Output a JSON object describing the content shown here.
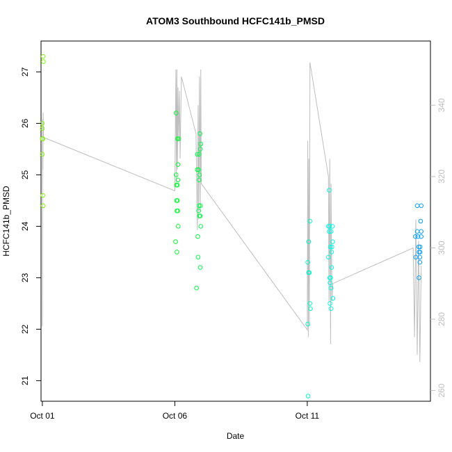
{
  "chart_data": {
    "type": "scatter",
    "title": "ATOM3 Southbound HCFC141b_PMSD",
    "xlabel": "Date",
    "ylabel": "HCFC141b_PMSD",
    "xlim": [
      -0.05,
      14.65
    ],
    "ylim": [
      20.6,
      27.6
    ],
    "y2lim": [
      257,
      358
    ],
    "x_tick_labels": [
      "Oct 01",
      "Oct 06",
      "Oct 11"
    ],
    "x_tick_days": [
      0,
      5,
      10
    ],
    "y_ticks": [
      21,
      22,
      23,
      24,
      25,
      26,
      27
    ],
    "y2_ticks": [
      260,
      280,
      300,
      320,
      340
    ],
    "grid": false,
    "points_color_note": "gradient from green (early) through cyan to blue (late)",
    "series": [
      {
        "values": [
          {
            "x": 0.03,
            "y": 27.3
          },
          {
            "x": 0.04,
            "y": 27.2
          },
          {
            "x": 0.0,
            "y": 26.0
          },
          {
            "x": 0.0,
            "y": 25.9
          },
          {
            "x": 0.0,
            "y": 25.7
          },
          {
            "x": 0.02,
            "y": 25.7
          },
          {
            "x": 0.0,
            "y": 25.4
          },
          {
            "x": 0.02,
            "y": 24.6
          },
          {
            "x": 0.03,
            "y": 24.4
          },
          {
            "x": 5.05,
            "y": 26.2
          },
          {
            "x": 5.1,
            "y": 25.7
          },
          {
            "x": 5.15,
            "y": 25.7
          },
          {
            "x": 5.12,
            "y": 25.2
          },
          {
            "x": 5.05,
            "y": 25.0
          },
          {
            "x": 5.12,
            "y": 24.9
          },
          {
            "x": 5.06,
            "y": 24.8
          },
          {
            "x": 5.1,
            "y": 24.8
          },
          {
            "x": 5.07,
            "y": 24.5
          },
          {
            "x": 5.1,
            "y": 24.5
          },
          {
            "x": 5.08,
            "y": 24.3
          },
          {
            "x": 5.11,
            "y": 24.3
          },
          {
            "x": 5.13,
            "y": 24.0
          },
          {
            "x": 5.03,
            "y": 23.7
          },
          {
            "x": 5.08,
            "y": 23.5
          },
          {
            "x": 5.95,
            "y": 25.8
          },
          {
            "x": 5.98,
            "y": 25.6
          },
          {
            "x": 5.96,
            "y": 25.5
          },
          {
            "x": 5.85,
            "y": 25.4
          },
          {
            "x": 5.92,
            "y": 25.4
          },
          {
            "x": 5.85,
            "y": 25.1
          },
          {
            "x": 5.9,
            "y": 25.1
          },
          {
            "x": 5.93,
            "y": 25.0
          },
          {
            "x": 5.92,
            "y": 24.9
          },
          {
            "x": 5.92,
            "y": 24.4
          },
          {
            "x": 5.97,
            "y": 24.4
          },
          {
            "x": 5.9,
            "y": 24.3
          },
          {
            "x": 5.93,
            "y": 24.2
          },
          {
            "x": 5.96,
            "y": 24.2
          },
          {
            "x": 5.98,
            "y": 24.0
          },
          {
            "x": 5.87,
            "y": 23.8
          },
          {
            "x": 5.88,
            "y": 23.4
          },
          {
            "x": 5.96,
            "y": 23.2
          },
          {
            "x": 5.82,
            "y": 22.8
          },
          {
            "x": 10.1,
            "y": 24.1
          },
          {
            "x": 10.05,
            "y": 23.7
          },
          {
            "x": 10.02,
            "y": 23.3
          },
          {
            "x": 10.05,
            "y": 23.1
          },
          {
            "x": 10.08,
            "y": 23.1
          },
          {
            "x": 10.1,
            "y": 22.5
          },
          {
            "x": 10.12,
            "y": 22.4
          },
          {
            "x": 10.02,
            "y": 22.1
          },
          {
            "x": 10.03,
            "y": 20.7
          },
          {
            "x": 10.83,
            "y": 24.7
          },
          {
            "x": 10.8,
            "y": 24.0
          },
          {
            "x": 10.84,
            "y": 24.0
          },
          {
            "x": 10.95,
            "y": 24.0
          },
          {
            "x": 10.83,
            "y": 23.9
          },
          {
            "x": 10.9,
            "y": 23.9
          },
          {
            "x": 10.96,
            "y": 23.7
          },
          {
            "x": 10.87,
            "y": 23.6
          },
          {
            "x": 10.93,
            "y": 23.6
          },
          {
            "x": 10.92,
            "y": 23.5
          },
          {
            "x": 10.8,
            "y": 23.4
          },
          {
            "x": 10.92,
            "y": 23.2
          },
          {
            "x": 10.85,
            "y": 23.0
          },
          {
            "x": 10.88,
            "y": 23.0
          },
          {
            "x": 10.86,
            "y": 22.9
          },
          {
            "x": 10.9,
            "y": 22.8
          },
          {
            "x": 10.97,
            "y": 22.6
          },
          {
            "x": 10.86,
            "y": 22.5
          },
          {
            "x": 10.9,
            "y": 22.4
          },
          {
            "x": 14.15,
            "y": 24.4
          },
          {
            "x": 14.3,
            "y": 24.4
          },
          {
            "x": 14.15,
            "y": 23.9
          },
          {
            "x": 14.3,
            "y": 23.9
          },
          {
            "x": 14.08,
            "y": 23.8
          },
          {
            "x": 14.18,
            "y": 23.8
          },
          {
            "x": 14.3,
            "y": 23.8
          },
          {
            "x": 14.21,
            "y": 23.6
          },
          {
            "x": 14.26,
            "y": 23.6
          },
          {
            "x": 14.26,
            "y": 23.5
          },
          {
            "x": 14.22,
            "y": 23.5
          },
          {
            "x": 14.28,
            "y": 24.1
          },
          {
            "x": 14.1,
            "y": 23.4
          },
          {
            "x": 14.25,
            "y": 23.4
          },
          {
            "x": 14.22,
            "y": 23.0
          },
          {
            "x": 14.25,
            "y": 23.3
          }
        ]
      },
      {
        "axis": "right",
        "values": [
          {
            "x": 0.0,
            "y": 278
          },
          {
            "x": 0.01,
            "y": 336
          },
          {
            "x": 0.02,
            "y": 322
          },
          {
            "x": 0.03,
            "y": 338
          },
          {
            "x": 0.04,
            "y": 331
          },
          {
            "x": 5.0,
            "y": 316
          },
          {
            "x": 5.04,
            "y": 350
          },
          {
            "x": 5.06,
            "y": 318
          },
          {
            "x": 5.08,
            "y": 350
          },
          {
            "x": 5.1,
            "y": 322
          },
          {
            "x": 5.12,
            "y": 345
          },
          {
            "x": 5.15,
            "y": 330
          },
          {
            "x": 5.18,
            "y": 344
          },
          {
            "x": 5.2,
            "y": 325
          },
          {
            "x": 5.25,
            "y": 348
          },
          {
            "x": 5.8,
            "y": 332
          },
          {
            "x": 5.85,
            "y": 305
          },
          {
            "x": 5.88,
            "y": 340
          },
          {
            "x": 5.9,
            "y": 308
          },
          {
            "x": 5.93,
            "y": 348
          },
          {
            "x": 5.96,
            "y": 310
          },
          {
            "x": 5.98,
            "y": 350
          },
          {
            "x": 6.0,
            "y": 318
          },
          {
            "x": 10.0,
            "y": 277
          },
          {
            "x": 10.02,
            "y": 330
          },
          {
            "x": 10.04,
            "y": 275
          },
          {
            "x": 10.06,
            "y": 325
          },
          {
            "x": 10.08,
            "y": 278
          },
          {
            "x": 10.1,
            "y": 352
          },
          {
            "x": 10.8,
            "y": 320
          },
          {
            "x": 10.82,
            "y": 285
          },
          {
            "x": 10.85,
            "y": 325
          },
          {
            "x": 10.88,
            "y": 273
          },
          {
            "x": 10.9,
            "y": 318
          },
          {
            "x": 10.93,
            "y": 285
          },
          {
            "x": 10.96,
            "y": 290
          },
          {
            "x": 14.0,
            "y": 300
          },
          {
            "x": 14.05,
            "y": 275
          },
          {
            "x": 14.1,
            "y": 308
          },
          {
            "x": 14.15,
            "y": 270
          },
          {
            "x": 14.2,
            "y": 302
          },
          {
            "x": 14.25,
            "y": 268
          },
          {
            "x": 14.3,
            "y": 295
          }
        ]
      }
    ]
  }
}
